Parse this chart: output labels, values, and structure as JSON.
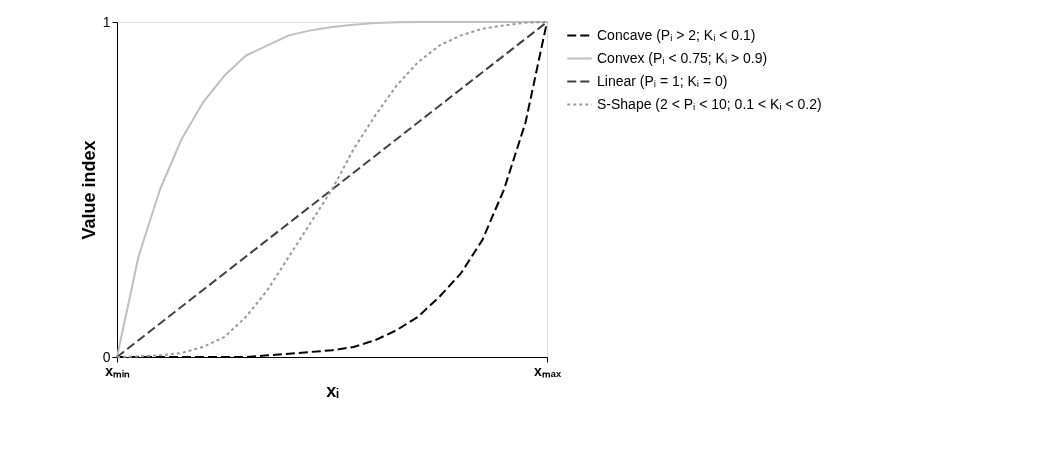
{
  "chart_data": {
    "type": "line",
    "xlabel": "xᵢ",
    "ylabel": "Value index",
    "categories": [
      "xₘᵢₙ",
      null,
      null,
      null,
      null,
      null,
      null,
      null,
      null,
      null,
      null,
      null,
      null,
      null,
      null,
      null,
      null,
      null,
      null,
      null,
      "xₘₐₓ"
    ],
    "series": [
      {
        "name": "Concave (Pᵢ > 2; Kᵢ < 0.1)",
        "color": "#000000",
        "line_style": "dashed",
        "values": [
          0,
          0,
          0,
          0,
          0,
          0,
          0,
          0.005,
          0.01,
          0.015,
          0.02,
          0.03,
          0.05,
          0.08,
          0.12,
          0.18,
          0.25,
          0.35,
          0.5,
          0.7,
          1
        ]
      },
      {
        "name": "Convex (Pᵢ < 0.75; Kᵢ > 0.9)",
        "color": "#bfbfbf",
        "line_style": "solid",
        "values": [
          0,
          0.3,
          0.5,
          0.65,
          0.76,
          0.84,
          0.9,
          0.93,
          0.96,
          0.975,
          0.985,
          0.992,
          0.997,
          0.999,
          1,
          1,
          1,
          1,
          1,
          1,
          1
        ]
      },
      {
        "name": "Linear (Pᵢ = 1; Kᵢ = 0)",
        "color": "#404040",
        "line_style": "dashed",
        "values": [
          0,
          0.05,
          0.1,
          0.15,
          0.2,
          0.25,
          0.3,
          0.35,
          0.4,
          0.45,
          0.5,
          0.55,
          0.6,
          0.65,
          0.7,
          0.75,
          0.8,
          0.85,
          0.9,
          0.95,
          1
        ]
      },
      {
        "name": "S-Shape (2 < Pᵢ < 10; 0.1 < Kᵢ < 0.2)",
        "color": "#999999",
        "line_style": "dotted",
        "values": [
          0,
          0.002,
          0.005,
          0.012,
          0.03,
          0.06,
          0.12,
          0.2,
          0.3,
          0.4,
          0.5,
          0.62,
          0.72,
          0.81,
          0.88,
          0.93,
          0.96,
          0.98,
          0.99,
          0.998,
          1
        ]
      }
    ],
    "ylim": [
      0,
      1
    ],
    "yticks": [
      0,
      1
    ],
    "legend": "right",
    "marker": "none"
  }
}
